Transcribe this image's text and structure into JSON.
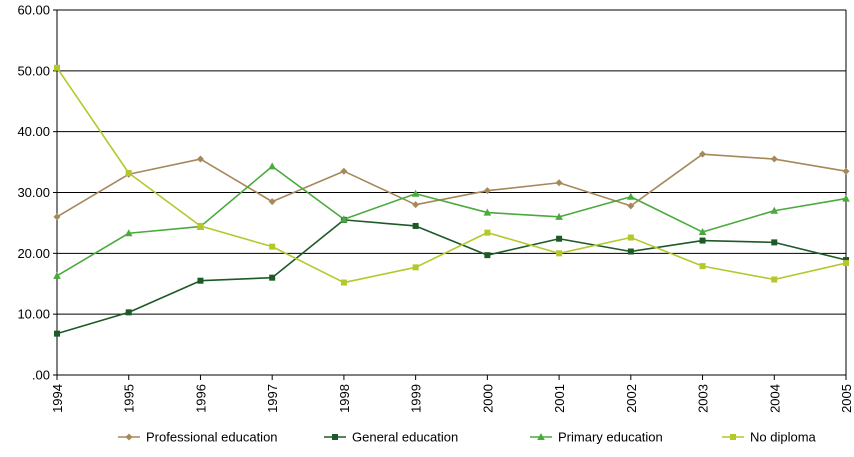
{
  "chart_data": {
    "type": "line",
    "title": "",
    "xlabel": "",
    "ylabel": "",
    "x": [
      "1994",
      "1995",
      "1996",
      "1997",
      "1998",
      "1999",
      "2000",
      "2001",
      "2002",
      "2003",
      "2004",
      "2005"
    ],
    "ylim": [
      0,
      60
    ],
    "ytick_values": [
      0,
      10,
      20,
      30,
      40,
      50,
      60
    ],
    "ytick_labels": [
      ".00",
      "10.00",
      "20.00",
      "30.00",
      "40.00",
      "50.00",
      "60.00"
    ],
    "grid": "horizontal",
    "legend_position": "bottom",
    "series": [
      {
        "name": "Professional education",
        "color": "#a6885a",
        "marker": "diamond",
        "values": [
          26.0,
          33.0,
          35.5,
          28.5,
          33.5,
          28.0,
          30.3,
          31.6,
          27.8,
          36.3,
          35.5,
          33.5
        ]
      },
      {
        "name": "General education",
        "color": "#1e5a28",
        "marker": "square",
        "values": [
          6.8,
          10.3,
          15.5,
          16.0,
          25.5,
          24.5,
          19.7,
          22.4,
          20.3,
          22.1,
          21.8,
          18.9
        ]
      },
      {
        "name": "Primary education",
        "color": "#4aaa3c",
        "marker": "triangle",
        "values": [
          16.3,
          23.3,
          24.4,
          34.3,
          25.6,
          29.8,
          26.7,
          26.0,
          29.3,
          23.5,
          27.0,
          29.0
        ]
      },
      {
        "name": "No diploma",
        "color": "#b4c82a",
        "marker": "square",
        "values": [
          50.5,
          33.2,
          24.5,
          21.1,
          15.2,
          17.7,
          23.4,
          20.0,
          22.6,
          17.9,
          15.7,
          18.4
        ]
      }
    ]
  }
}
